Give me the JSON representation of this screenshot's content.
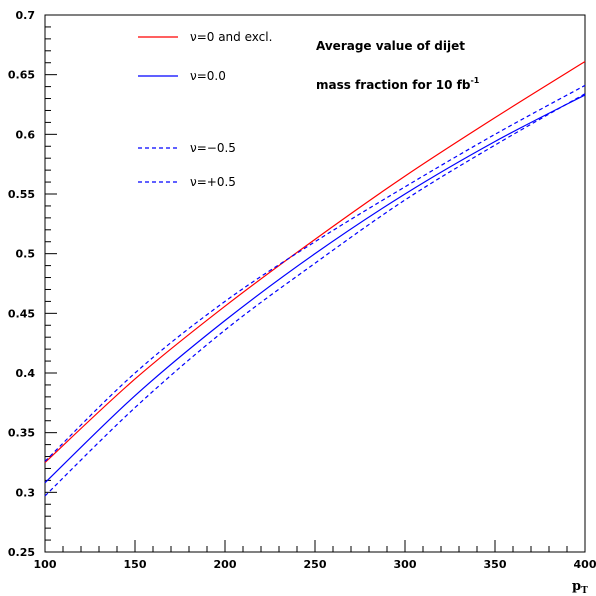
{
  "chart_data": {
    "type": "line",
    "title": "",
    "xlabel": "p",
    "xlabel_subscript": "T",
    "ylabel": "",
    "xlim": [
      100,
      400
    ],
    "ylim": [
      0.25,
      0.7
    ],
    "x_ticks": [
      "100",
      "150",
      "200",
      "250",
      "300",
      "350",
      "400"
    ],
    "y_ticks": [
      "0.25",
      "0.3",
      "0.35",
      "0.4",
      "0.45",
      "0.5",
      "0.55",
      "0.6",
      "0.65",
      "0.7"
    ],
    "grid": false,
    "legend_position": "top-left",
    "x": [
      100,
      150,
      200,
      250,
      300,
      350,
      400
    ],
    "series": [
      {
        "name": "ν=0 and excl.",
        "color": "#ff0000",
        "dash": "solid",
        "values": [
          0.325,
          0.395,
          0.456,
          0.512,
          0.565,
          0.614,
          0.661
        ]
      },
      {
        "name": "ν=0.0",
        "color": "#0000ff",
        "dash": "solid",
        "values": [
          0.308,
          0.381,
          0.444,
          0.5,
          0.55,
          0.594,
          0.633
        ]
      },
      {
        "name": "ν=−0.5",
        "color": "#0000ff",
        "dash": "dashed",
        "values": [
          0.326,
          0.4,
          0.46,
          0.51,
          0.556,
          0.6,
          0.641
        ]
      },
      {
        "name": "ν=+0.5",
        "color": "#0000ff",
        "dash": "dashed",
        "values": [
          0.297,
          0.371,
          0.436,
          0.492,
          0.545,
          0.591,
          0.634
        ]
      }
    ],
    "annotation": {
      "line1": "Average value of dijet",
      "line2": "mass fraction for 10 fb",
      "superscript": "-1"
    }
  }
}
